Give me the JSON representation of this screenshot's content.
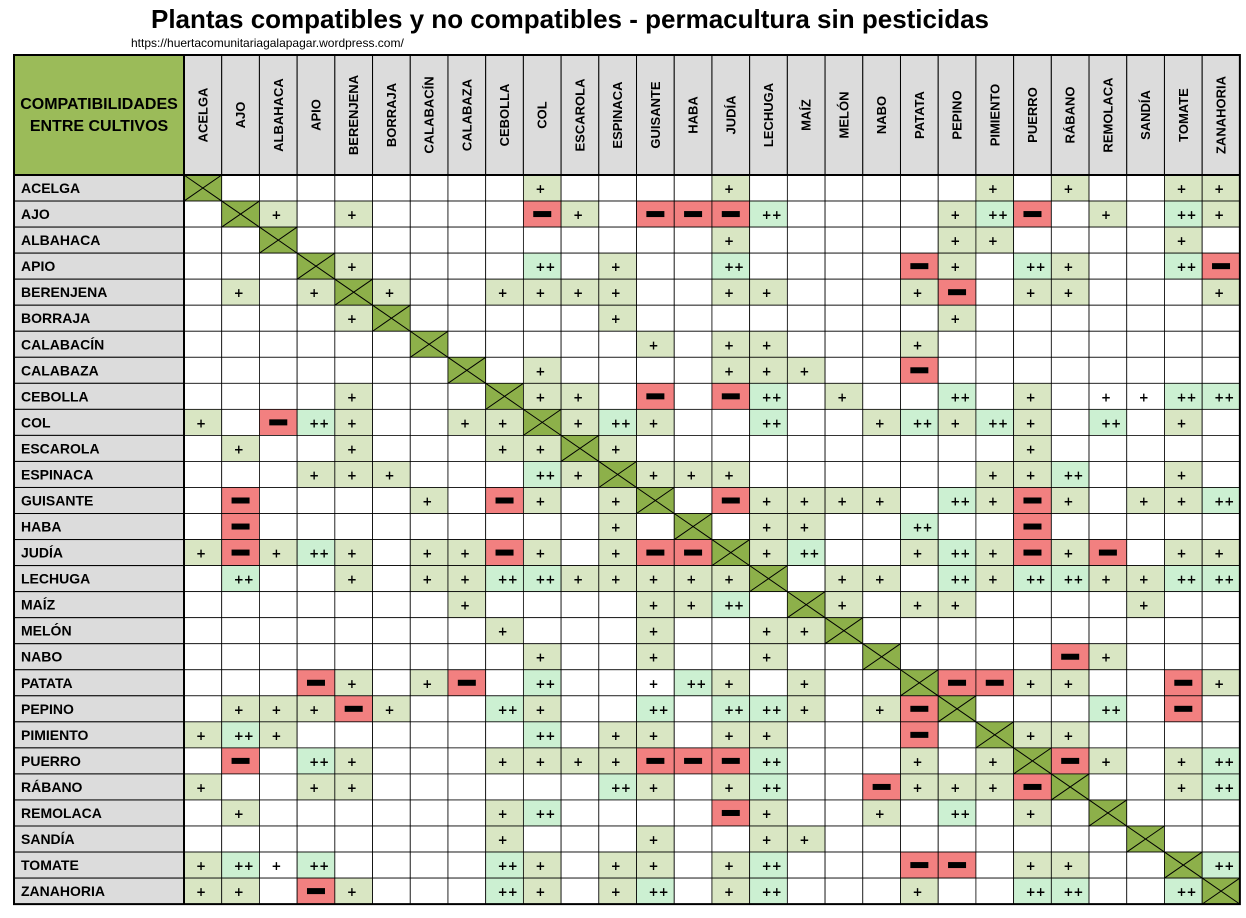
{
  "title": "Plantas compatibles y no compatibles - permacultura sin pesticidas",
  "url": "https://huertacomunitariagalapagar.wordpress.com/",
  "corner": [
    "COMPATIBILIDADES",
    "ENTRE CULTIVOS"
  ],
  "colors": {
    "header_bg": "#dcdcdc",
    "corner_bg": "#9bbb59",
    "diagonal_bg": "#8db04a",
    "good_bg": "#d9e6c3",
    "very_good_bg": "#ccf0d2",
    "bad_bg": "#f28080"
  },
  "legend_codes": {
    "1": "+",
    "2": "++",
    "-1": "bad"
  },
  "crops": [
    "ACELGA",
    "AJO",
    "ALBAHACA",
    "APIO",
    "BERENJENA",
    "BORRAJA",
    "CALABACÍN",
    "CALABAZA",
    "CEBOLLA",
    "COL",
    "ESCAROLA",
    "ESPINACA",
    "GUISANTE",
    "HABA",
    "JUDÍA",
    "LECHUGA",
    "MAÍZ",
    "MELÓN",
    "NABO",
    "PATATA",
    "PEPINO",
    "PIMIENTO",
    "PUERRO",
    "RÁBANO",
    "REMOLACA",
    "SANDÍA",
    "TOMATE",
    "ZANAHORIA"
  ],
  "matrix": [
    [
      9,
      0,
      0,
      0,
      0,
      0,
      0,
      0,
      0,
      1,
      0,
      0,
      0,
      0,
      1,
      0,
      0,
      0,
      0,
      0,
      0,
      1,
      0,
      1,
      0,
      0,
      1,
      1
    ],
    [
      0,
      9,
      1,
      0,
      1,
      0,
      0,
      0,
      0,
      -1,
      1,
      0,
      -1,
      -1,
      -1,
      2,
      0,
      0,
      0,
      0,
      1,
      2,
      -1,
      0,
      1,
      0,
      2,
      1
    ],
    [
      0,
      0,
      9,
      0,
      0,
      0,
      0,
      0,
      0,
      0,
      0,
      0,
      0,
      0,
      1,
      0,
      0,
      0,
      0,
      0,
      1,
      1,
      0,
      0,
      0,
      0,
      1,
      0
    ],
    [
      0,
      0,
      0,
      9,
      1,
      0,
      0,
      0,
      0,
      2,
      0,
      1,
      0,
      0,
      2,
      0,
      0,
      0,
      0,
      -1,
      1,
      0,
      2,
      1,
      0,
      0,
      2,
      -1
    ],
    [
      0,
      1,
      0,
      1,
      9,
      1,
      0,
      0,
      1,
      1,
      1,
      1,
      0,
      0,
      1,
      1,
      0,
      0,
      0,
      1,
      -1,
      0,
      1,
      1,
      0,
      0,
      0,
      1
    ],
    [
      0,
      0,
      0,
      0,
      1,
      9,
      0,
      0,
      0,
      0,
      0,
      1,
      0,
      0,
      0,
      0,
      0,
      0,
      0,
      0,
      1,
      0,
      0,
      0,
      0,
      0,
      0,
      0
    ],
    [
      0,
      0,
      0,
      0,
      0,
      0,
      9,
      0,
      0,
      0,
      0,
      0,
      1,
      0,
      1,
      1,
      0,
      0,
      0,
      1,
      0,
      0,
      0,
      0,
      0,
      0,
      0,
      0
    ],
    [
      0,
      0,
      0,
      0,
      0,
      0,
      0,
      9,
      0,
      1,
      0,
      0,
      0,
      0,
      1,
      1,
      1,
      0,
      0,
      -1,
      0,
      0,
      0,
      0,
      0,
      0,
      0,
      0
    ],
    [
      0,
      0,
      0,
      0,
      1,
      0,
      0,
      0,
      9,
      1,
      1,
      0,
      -1,
      0,
      -1,
      2,
      0,
      1,
      0,
      0,
      2,
      0,
      1,
      0,
      3,
      3,
      2,
      2
    ],
    [
      1,
      0,
      -1,
      2,
      1,
      0,
      0,
      1,
      1,
      9,
      1,
      2,
      1,
      0,
      0,
      2,
      0,
      0,
      1,
      2,
      1,
      2,
      1,
      0,
      2,
      0,
      1,
      0
    ],
    [
      0,
      1,
      0,
      0,
      1,
      0,
      0,
      0,
      1,
      1,
      9,
      1,
      0,
      0,
      0,
      0,
      0,
      0,
      0,
      0,
      0,
      0,
      1,
      0,
      0,
      0,
      0,
      0
    ],
    [
      0,
      0,
      0,
      1,
      1,
      1,
      0,
      0,
      0,
      2,
      1,
      9,
      1,
      1,
      1,
      0,
      0,
      0,
      0,
      0,
      0,
      1,
      1,
      2,
      0,
      0,
      1,
      0
    ],
    [
      0,
      -1,
      0,
      0,
      0,
      0,
      1,
      0,
      -1,
      1,
      0,
      1,
      9,
      0,
      -1,
      1,
      1,
      1,
      1,
      0,
      2,
      1,
      -1,
      1,
      0,
      1,
      1,
      2
    ],
    [
      0,
      -1,
      0,
      0,
      0,
      0,
      0,
      0,
      0,
      0,
      0,
      1,
      0,
      9,
      0,
      1,
      1,
      0,
      0,
      2,
      0,
      0,
      -1,
      0,
      0,
      0,
      0,
      0
    ],
    [
      1,
      -1,
      1,
      2,
      1,
      0,
      1,
      1,
      -1,
      1,
      0,
      1,
      -1,
      -1,
      9,
      1,
      2,
      0,
      0,
      1,
      2,
      1,
      -1,
      1,
      -1,
      0,
      1,
      1
    ],
    [
      0,
      2,
      0,
      0,
      1,
      0,
      1,
      1,
      2,
      2,
      1,
      1,
      1,
      1,
      1,
      9,
      0,
      1,
      1,
      0,
      2,
      1,
      2,
      2,
      1,
      1,
      2,
      2
    ],
    [
      0,
      0,
      0,
      0,
      0,
      0,
      0,
      1,
      0,
      0,
      0,
      0,
      1,
      1,
      2,
      0,
      9,
      1,
      0,
      1,
      1,
      0,
      0,
      0,
      0,
      1,
      0,
      0
    ],
    [
      0,
      0,
      0,
      0,
      0,
      0,
      0,
      0,
      1,
      0,
      0,
      0,
      1,
      0,
      0,
      1,
      1,
      9,
      0,
      0,
      0,
      0,
      0,
      0,
      0,
      0,
      0,
      0
    ],
    [
      0,
      0,
      0,
      0,
      0,
      0,
      0,
      0,
      0,
      1,
      0,
      0,
      1,
      0,
      0,
      1,
      0,
      0,
      9,
      0,
      0,
      0,
      0,
      -1,
      1,
      0,
      0,
      0
    ],
    [
      0,
      0,
      0,
      -1,
      1,
      0,
      1,
      -1,
      0,
      2,
      0,
      0,
      3,
      2,
      1,
      0,
      1,
      0,
      0,
      9,
      -1,
      -1,
      1,
      1,
      0,
      0,
      -1,
      1
    ],
    [
      0,
      1,
      1,
      1,
      -1,
      1,
      0,
      0,
      2,
      1,
      0,
      0,
      2,
      0,
      2,
      2,
      1,
      0,
      1,
      -1,
      9,
      0,
      0,
      0,
      2,
      0,
      -1,
      0
    ],
    [
      1,
      2,
      1,
      0,
      0,
      0,
      0,
      0,
      0,
      2,
      0,
      1,
      1,
      0,
      1,
      1,
      0,
      0,
      0,
      -1,
      0,
      9,
      1,
      1,
      0,
      0,
      0,
      0
    ],
    [
      0,
      -1,
      0,
      2,
      1,
      0,
      0,
      0,
      1,
      1,
      1,
      1,
      -1,
      -1,
      -1,
      2,
      0,
      0,
      0,
      1,
      0,
      1,
      9,
      -1,
      1,
      0,
      1,
      2
    ],
    [
      1,
      0,
      0,
      1,
      1,
      0,
      0,
      0,
      0,
      0,
      0,
      2,
      1,
      0,
      1,
      2,
      0,
      0,
      -1,
      1,
      1,
      1,
      -1,
      9,
      0,
      0,
      1,
      2
    ],
    [
      0,
      1,
      0,
      0,
      0,
      0,
      0,
      0,
      1,
      2,
      0,
      0,
      0,
      0,
      -1,
      1,
      0,
      0,
      1,
      0,
      2,
      0,
      1,
      0,
      9,
      0,
      0,
      0
    ],
    [
      0,
      0,
      0,
      0,
      0,
      0,
      0,
      0,
      1,
      0,
      0,
      0,
      1,
      0,
      0,
      1,
      1,
      0,
      0,
      0,
      0,
      0,
      0,
      0,
      0,
      9,
      0,
      0
    ],
    [
      1,
      2,
      3,
      2,
      0,
      0,
      0,
      0,
      2,
      1,
      0,
      1,
      1,
      0,
      1,
      2,
      0,
      0,
      0,
      -1,
      -1,
      0,
      1,
      1,
      0,
      0,
      9,
      2
    ],
    [
      1,
      1,
      0,
      -1,
      1,
      0,
      0,
      0,
      2,
      1,
      0,
      1,
      2,
      0,
      1,
      2,
      0,
      0,
      0,
      1,
      0,
      0,
      2,
      2,
      0,
      0,
      2,
      9
    ]
  ]
}
